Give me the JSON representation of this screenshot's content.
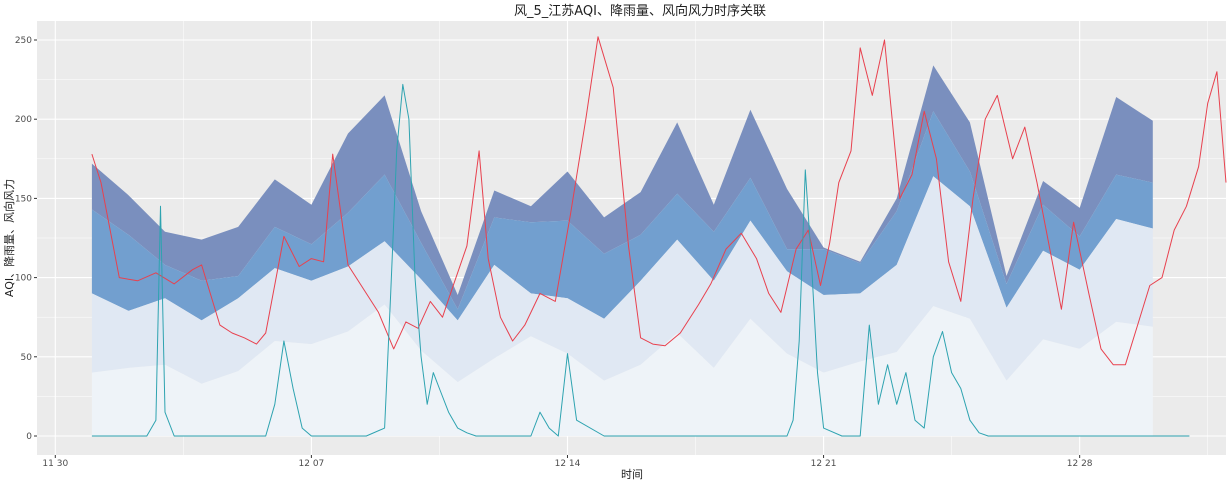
{
  "chart_data": {
    "type": "area",
    "title": "风_5_江苏AQI、降雨量、风向风力时序关联",
    "xlabel": "时间",
    "ylabel": "AQI、降雨量、风向风力",
    "xlim": [
      "2024-11-29T12:00",
      "2025-01-01T00:00"
    ],
    "ylim": [
      -12,
      262
    ],
    "x_ticks": [
      {
        "date": "2024-11-30",
        "label": "11 30"
      },
      {
        "date": "2024-12-07",
        "label": "12 07"
      },
      {
        "date": "2024-12-14",
        "label": "12 14"
      },
      {
        "date": "2024-12-21",
        "label": "12 21"
      },
      {
        "date": "2024-12-28",
        "label": "12 28"
      }
    ],
    "y_ticks": [
      0,
      50,
      100,
      150,
      200,
      250
    ],
    "grid": true,
    "legend": "none",
    "colors": {
      "panel": "#ebebeb",
      "grid": "#ffffff",
      "aqi_line": "#e8414e",
      "rain_line": "#2ea3b0",
      "band_top": "#7a8fbe",
      "band_upper": "#729fcf",
      "band_mid": "#e0e8f3",
      "band_low": "#eef3f8"
    },
    "band_x": [
      "2024-12-01",
      "2024-12-02",
      "2024-12-03",
      "2024-12-04",
      "2024-12-05",
      "2024-12-06",
      "2024-12-07",
      "2024-12-08",
      "2024-12-09",
      "2024-12-10",
      "2024-12-11",
      "2024-12-12",
      "2024-12-13",
      "2024-12-14",
      "2024-12-15",
      "2024-12-16",
      "2024-12-17",
      "2024-12-18",
      "2024-12-19",
      "2024-12-20",
      "2024-12-21",
      "2024-12-22",
      "2024-12-23",
      "2024-12-24",
      "2024-12-25",
      "2024-12-26",
      "2024-12-27",
      "2024-12-28",
      "2024-12-29",
      "2024-12-30"
    ],
    "bands": {
      "level_1": [
        40,
        43,
        45,
        33,
        41,
        60,
        58,
        66,
        83,
        54,
        34,
        49,
        63,
        52,
        35,
        45,
        65,
        43,
        74,
        52,
        40,
        47,
        53,
        82,
        74,
        35,
        61,
        55,
        72,
        69
      ],
      "level_2": [
        90,
        79,
        87,
        73,
        87,
        106,
        98,
        107,
        123,
        99,
        73,
        108,
        90,
        87,
        74,
        98,
        124,
        98,
        136,
        104,
        89,
        90,
        108,
        164,
        145,
        81,
        117,
        105,
        137,
        131
      ],
      "level_3": [
        143,
        127,
        108,
        98,
        101,
        132,
        121,
        141,
        165,
        122,
        80,
        138,
        135,
        136,
        115,
        127,
        153,
        129,
        163,
        118,
        118,
        109,
        142,
        205,
        167,
        96,
        146,
        126,
        165,
        160
      ],
      "level_4": [
        172,
        152,
        129,
        124,
        132,
        162,
        146,
        191,
        215,
        142,
        89,
        155,
        145,
        167,
        138,
        154,
        198,
        146,
        206,
        156,
        119,
        110,
        150,
        234,
        198,
        101,
        161,
        144,
        214,
        199
      ]
    },
    "series": [
      {
        "type": "line",
        "x": [
          "2024-12-01T00:00",
          "2024-12-01T06:00",
          "2024-12-01T18:00",
          "2024-12-02T06:00",
          "2024-12-02T18:00",
          "2024-12-03T06:00",
          "2024-12-03T18:00",
          "2024-12-04T00:00",
          "2024-12-04T12:00",
          "2024-12-04T20:00",
          "2024-12-05T04:00",
          "2024-12-05T12:00",
          "2024-12-05T18:00",
          "2024-12-06T06:00",
          "2024-12-06T16:00",
          "2024-12-07T00:00",
          "2024-12-07T08:00",
          "2024-12-07T14:00",
          "2024-12-08T00:00",
          "2024-12-08T12:00",
          "2024-12-08T20:00",
          "2024-12-09T06:00",
          "2024-12-09T14:00",
          "2024-12-09T22:00",
          "2024-12-10T06:00",
          "2024-12-10T14:00",
          "2024-12-10T20:00",
          "2024-12-11T06:00",
          "2024-12-11T14:00",
          "2024-12-11T20:00",
          "2024-12-12T04:00",
          "2024-12-12T12:00",
          "2024-12-12T20:00",
          "2024-12-13T06:00",
          "2024-12-13T16:00",
          "2024-12-14T02:00",
          "2024-12-14T12:00",
          "2024-12-14T20:00",
          "2024-12-15T06:00",
          "2024-12-15T16:00",
          "2024-12-16T00:00",
          "2024-12-16T08:00",
          "2024-12-16T16:00",
          "2024-12-17T02:00",
          "2024-12-17T14:00",
          "2024-12-17T22:00",
          "2024-12-18T08:00",
          "2024-12-18T18:00",
          "2024-12-19T04:00",
          "2024-12-19T12:00",
          "2024-12-19T20:00",
          "2024-12-20T06:00",
          "2024-12-20T14:00",
          "2024-12-20T22:00",
          "2024-12-21T04:00",
          "2024-12-21T10:00",
          "2024-12-21T18:00",
          "2024-12-22T00:00",
          "2024-12-22T08:00",
          "2024-12-22T16:00",
          "2024-12-23T02:00",
          "2024-12-23T10:00",
          "2024-12-23T18:00",
          "2024-12-24T02:00",
          "2024-12-24T10:00",
          "2024-12-24T18:00",
          "2024-12-25T02:00",
          "2024-12-25T10:00",
          "2024-12-25T18:00",
          "2024-12-26T04:00",
          "2024-12-26T12:00",
          "2024-12-26T20:00",
          "2024-12-27T04:00",
          "2024-12-27T12:00",
          "2024-12-27T20:00",
          "2024-12-28T06:00",
          "2024-12-28T14:00",
          "2024-12-28T22:00",
          "2024-12-29T06:00",
          "2024-12-29T14:00",
          "2024-12-29T22:00",
          "2024-12-30T06:00",
          "2024-12-30T14:00",
          "2024-12-30T22:00",
          "2024-12-31T06:00",
          "2024-12-31T12:00",
          "2024-12-31T18:00",
          "2025-01-01T00:00"
        ],
        "values": [
          178,
          160,
          100,
          98,
          103,
          96,
          105,
          108,
          70,
          65,
          62,
          58,
          65,
          126,
          107,
          112,
          110,
          178,
          108,
          90,
          78,
          55,
          72,
          68,
          85,
          75,
          92,
          120,
          180,
          112,
          75,
          60,
          70,
          90,
          85,
          140,
          200,
          252,
          220,
          120,
          62,
          58,
          57,
          65,
          83,
          96,
          118,
          128,
          112,
          90,
          78,
          118,
          130,
          95,
          122,
          160,
          180,
          245,
          215,
          250,
          150,
          165,
          205,
          175,
          110,
          85,
          150,
          200,
          215,
          175,
          195,
          160,
          120,
          80,
          135,
          90,
          55,
          45,
          45,
          70,
          95,
          100,
          130,
          145,
          170,
          210,
          230,
          160
        ]
      },
      {
        "type": "line",
        "x": [
          "2024-12-01T00:00",
          "2024-12-01T12:00",
          "2024-12-02T00:00",
          "2024-12-02T12:00",
          "2024-12-02T18:00",
          "2024-12-02T21:00",
          "2024-12-03T00:00",
          "2024-12-03T06:00",
          "2024-12-04T00:00",
          "2024-12-05T00:00",
          "2024-12-05T18:00",
          "2024-12-06T00:00",
          "2024-12-06T06:00",
          "2024-12-06T12:00",
          "2024-12-06T18:00",
          "2024-12-07T00:00",
          "2024-12-08T00:00",
          "2024-12-08T12:00",
          "2024-12-09T00:00",
          "2024-12-09T04:00",
          "2024-12-09T08:00",
          "2024-12-09T12:00",
          "2024-12-09T16:00",
          "2024-12-09T20:00",
          "2024-12-10T00:00",
          "2024-12-10T04:00",
          "2024-12-10T08:00",
          "2024-12-10T12:00",
          "2024-12-10T18:00",
          "2024-12-11T00:00",
          "2024-12-11T06:00",
          "2024-12-11T12:00",
          "2024-12-12T00:00",
          "2024-12-13T00:00",
          "2024-12-13T06:00",
          "2024-12-13T12:00",
          "2024-12-13T18:00",
          "2024-12-14T00:00",
          "2024-12-14T06:00",
          "2024-12-15T00:00",
          "2024-12-16T00:00",
          "2024-12-17T00:00",
          "2024-12-18T00:00",
          "2024-12-19T00:00",
          "2024-12-20T00:00",
          "2024-12-20T04:00",
          "2024-12-20T08:00",
          "2024-12-20T12:00",
          "2024-12-20T16:00",
          "2024-12-20T20:00",
          "2024-12-21T00:00",
          "2024-12-21T12:00",
          "2024-12-22T00:00",
          "2024-12-22T06:00",
          "2024-12-22T12:00",
          "2024-12-22T18:00",
          "2024-12-23T00:00",
          "2024-12-23T06:00",
          "2024-12-23T12:00",
          "2024-12-23T18:00",
          "2024-12-24T00:00",
          "2024-12-24T06:00",
          "2024-12-24T12:00",
          "2024-12-24T18:00",
          "2024-12-25T00:00",
          "2024-12-25T06:00",
          "2024-12-25T12:00",
          "2024-12-26T00:00",
          "2024-12-27T00:00",
          "2024-12-28T00:00",
          "2024-12-29T00:00",
          "2024-12-30T00:00",
          "2024-12-31T00:00"
        ],
        "values": [
          0,
          0,
          0,
          0,
          10,
          145,
          15,
          0,
          0,
          0,
          0,
          20,
          60,
          30,
          5,
          0,
          0,
          0,
          5,
          90,
          180,
          222,
          200,
          100,
          50,
          20,
          40,
          30,
          15,
          5,
          2,
          0,
          0,
          0,
          15,
          5,
          0,
          52,
          10,
          0,
          0,
          0,
          0,
          0,
          0,
          10,
          60,
          168,
          110,
          40,
          5,
          0,
          0,
          70,
          20,
          45,
          20,
          40,
          10,
          5,
          50,
          66,
          40,
          30,
          10,
          2,
          0,
          0,
          0,
          0,
          0,
          0,
          0
        ]
      }
    ]
  }
}
